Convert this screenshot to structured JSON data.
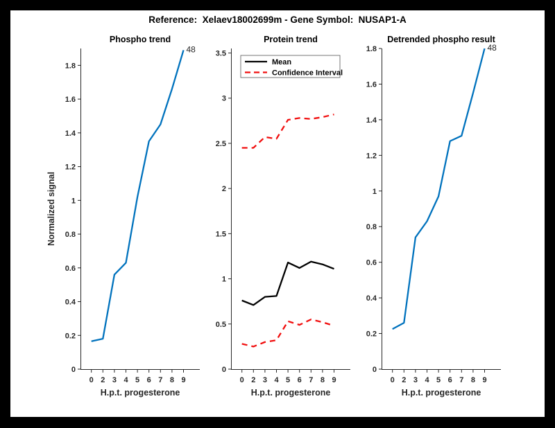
{
  "window": {
    "frame_color": "#000000",
    "canvas_color": "#ffffff",
    "axis_color": "#262626"
  },
  "figure_title": "Reference:  Xelaev18002699m - Gene Symbol:  NUSAP1-A",
  "chart_data": [
    {
      "type": "line",
      "title": "Phospho trend",
      "xlabel": "H.p.t. progesterone",
      "ylabel": "Normalized signal",
      "categories": [
        "0",
        "2",
        "3",
        "4",
        "5",
        "6",
        "7",
        "8",
        "9"
      ],
      "ylim": [
        0,
        1.9
      ],
      "ytick_labels": [
        "0",
        "0.2",
        "0.4",
        "0.6",
        "0.8",
        "1",
        "1.2",
        "1.4",
        "1.6",
        "1.8"
      ],
      "yticks": [
        0,
        0.2,
        0.4,
        0.6,
        0.8,
        1,
        1.2,
        1.4,
        1.6,
        1.8
      ],
      "grid": false,
      "legend": null,
      "end_annotation": "48",
      "series": [
        {
          "name": "Phospho",
          "color": "#0072BD",
          "style": "solid",
          "values": [
            0.165,
            0.18,
            0.56,
            0.63,
            1.02,
            1.35,
            1.45,
            1.66,
            1.89
          ]
        }
      ]
    },
    {
      "type": "line",
      "title": "Protein trend",
      "xlabel": "H.p.t. progesterone",
      "ylabel": null,
      "categories": [
        "0",
        "2",
        "3",
        "4",
        "5",
        "6",
        "7",
        "8",
        "9"
      ],
      "ylim": [
        0,
        3.55
      ],
      "ytick_labels": [
        "0",
        "0.5",
        "1",
        "1.5",
        "2",
        "2.5",
        "3",
        "3.5"
      ],
      "yticks": [
        0,
        0.5,
        1,
        1.5,
        2,
        2.5,
        3,
        3.5
      ],
      "grid": false,
      "legend": {
        "position": "top-left",
        "entries": [
          {
            "label": "Mean",
            "color": "#000000",
            "style": "solid"
          },
          {
            "label": "Confidence Interval",
            "color": "#f10e0e",
            "style": "dashed"
          }
        ]
      },
      "end_annotation": null,
      "series": [
        {
          "name": "Mean",
          "color": "#000000",
          "style": "solid",
          "values": [
            0.76,
            0.71,
            0.8,
            0.81,
            1.18,
            1.12,
            1.19,
            1.16,
            1.11
          ]
        },
        {
          "name": "Confidence Interval upper",
          "color": "#f10e0e",
          "style": "dashed",
          "values": [
            2.45,
            2.45,
            2.57,
            2.55,
            2.76,
            2.78,
            2.77,
            2.79,
            2.82
          ]
        },
        {
          "name": "Confidence Interval lower",
          "color": "#f10e0e",
          "style": "dashed",
          "values": [
            0.28,
            0.25,
            0.3,
            0.32,
            0.53,
            0.49,
            0.55,
            0.52,
            0.48
          ]
        }
      ]
    },
    {
      "type": "line",
      "title": "Detrended phospho result",
      "xlabel": "H.p.t. progesterone",
      "ylabel": null,
      "categories": [
        "0",
        "2",
        "3",
        "4",
        "5",
        "6",
        "7",
        "8",
        "9"
      ],
      "ylim": [
        0,
        1.8
      ],
      "ytick_labels": [
        "0",
        "0.2",
        "0.4",
        "0.6",
        "0.8",
        "1",
        "1.2",
        "1.4",
        "1.6",
        "1.8"
      ],
      "yticks": [
        0,
        0.2,
        0.4,
        0.6,
        0.8,
        1,
        1.2,
        1.4,
        1.6,
        1.8
      ],
      "grid": false,
      "legend": null,
      "end_annotation": "48",
      "series": [
        {
          "name": "Detrended phospho",
          "color": "#0072BD",
          "style": "solid",
          "values": [
            0.225,
            0.26,
            0.74,
            0.83,
            0.97,
            1.28,
            1.31,
            1.55,
            1.8
          ]
        }
      ]
    }
  ]
}
